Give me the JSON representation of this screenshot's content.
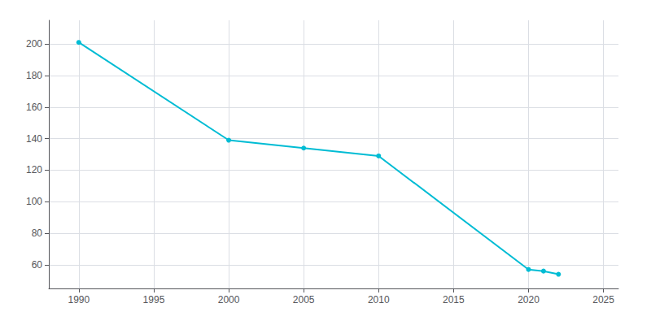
{
  "chart_data": {
    "type": "line",
    "x": [
      1990,
      2000,
      2005,
      2010,
      2020,
      2021,
      2022
    ],
    "values": [
      201,
      139,
      134,
      129,
      57,
      56,
      54
    ],
    "color": "#00bcd4",
    "marker": "circle",
    "xlim": [
      1988,
      2026
    ],
    "ylim": [
      45,
      215
    ],
    "xticks": [
      1990,
      1995,
      2000,
      2005,
      2010,
      2015,
      2020,
      2025
    ],
    "yticks": [
      60,
      80,
      100,
      120,
      140,
      160,
      180,
      200
    ],
    "grid": true
  }
}
